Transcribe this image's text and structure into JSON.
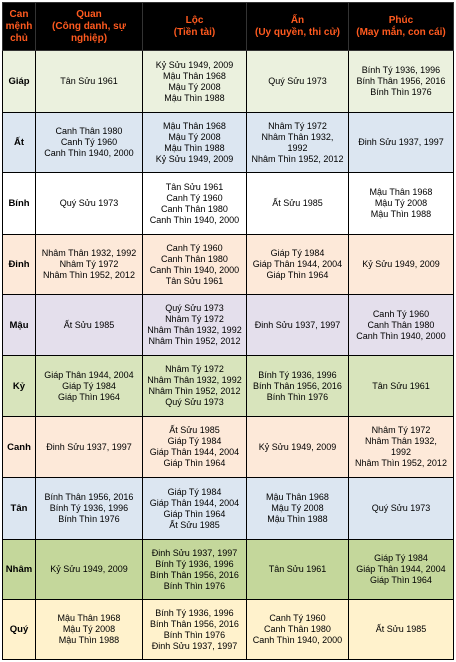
{
  "header": {
    "can_menh_chu": [
      "Can",
      "mệnh",
      "chủ"
    ],
    "quan": [
      "Quan",
      "(Công danh, sự",
      "nghiệp)"
    ],
    "loc": [
      "Lộc",
      "(Tiền tài)"
    ],
    "an": [
      "Ấn",
      "(Uy quyền, thi cử)"
    ],
    "phuc": [
      "Phúc",
      "(May mắn, con cái)"
    ]
  },
  "colors": {
    "header_bg": "#000000",
    "header_text": "#ff5a1f",
    "border": "#000000"
  },
  "rows": [
    {
      "can": "Giáp",
      "quan": [
        "Tân Sửu 1961"
      ],
      "loc": [
        "Kỷ Sửu 1949, 2009",
        "Mậu Thân 1968",
        "Mậu Tý 2008",
        "Mậu Thìn 1988"
      ],
      "an": [
        "Quý Sửu 1973"
      ],
      "phuc": [
        "Bính Tý 1936, 1996",
        "Bính Thân 1956, 2016",
        "Bính Thìn 1976"
      ]
    },
    {
      "can": "Ất",
      "quan": [
        "Canh Thân 1980",
        "Canh Tý 1960",
        "Canh Thìn 1940, 2000"
      ],
      "loc": [
        "Mậu Thân 1968",
        "Mậu Tý 2008",
        "Mậu Thìn 1988",
        "Kỷ Sửu 1949, 2009"
      ],
      "an": [
        "Nhâm Tý 1972",
        "Nhâm Thân 1932,",
        "1992",
        "Nhâm Thìn 1952, 2012"
      ],
      "phuc": [
        "Đinh Sửu 1937, 1997"
      ]
    },
    {
      "can": "Bính",
      "quan": [
        "Quý Sửu 1973"
      ],
      "loc": [
        "Tân Sửu 1961",
        "Canh Tý 1960",
        "Canh Thân 1980",
        "Canh Thìn 1940, 2000"
      ],
      "an": [
        "Ất Sửu 1985"
      ],
      "phuc": [
        "Mậu Thân 1968",
        "Mậu Tý 2008",
        "Mậu Thìn 1988"
      ]
    },
    {
      "can": "Đinh",
      "quan": [
        "Nhâm Thân 1932, 1992",
        "Nhâm Tý 1972",
        "Nhâm Thìn 1952, 2012"
      ],
      "loc": [
        "Canh Tý 1960",
        "Canh Thân 1980",
        "Canh Thìn 1940, 2000",
        "Tân Sửu 1961"
      ],
      "an": [
        "Giáp Tý 1984",
        "Giáp Thân 1944, 2004",
        "Giáp Thìn 1964"
      ],
      "phuc": [
        "Kỷ Sửu 1949, 2009"
      ]
    },
    {
      "can": "Mậu",
      "quan": [
        "Ất Sửu 1985"
      ],
      "loc": [
        "Quý Sửu 1973",
        "Nhâm Tý 1972",
        "Nhâm Thân 1932, 1992",
        "Nhâm Thìn 1952, 2012"
      ],
      "an": [
        "Đinh Sửu 1937, 1997"
      ],
      "phuc": [
        "Canh Tý 1960",
        "Canh Thân 1980",
        "Canh Thìn 1940, 2000"
      ]
    },
    {
      "can": "Kỷ",
      "quan": [
        "Giáp Thân 1944, 2004",
        "Giáp Tý 1984",
        "Giáp Thìn 1964"
      ],
      "loc": [
        "Nhâm Tý 1972",
        "Nhâm Thân 1932, 1992",
        "Nhâm Thìn 1952, 2012",
        "Quý Sửu 1973"
      ],
      "an": [
        "Bính Tý 1936, 1996",
        "Bính Thân 1956, 2016",
        "Bính Thìn 1976"
      ],
      "phuc": [
        "Tân Sửu  1961"
      ]
    },
    {
      "can": "Canh",
      "quan": [
        "Đinh Sửu 1937, 1997"
      ],
      "loc": [
        "Ất Sửu 1985",
        "Giáp Tý 1984",
        "Giáp Thân 1944, 2004",
        "Giáp Thìn 1964"
      ],
      "an": [
        "Kỷ Sửu 1949, 2009"
      ],
      "phuc": [
        "Nhâm Tý 1972",
        "Nhâm Thân 1932,",
        "1992",
        "Nhâm Thìn 1952, 2012"
      ]
    },
    {
      "can": "Tân",
      "quan": [
        "Bính Thân 1956, 2016",
        "Bính Tý 1936, 1996",
        "Bính Thìn 1976"
      ],
      "loc": [
        "Giáp Tý 1984",
        "Giáp Thân 1944, 2004",
        "Giáp Thìn 1964",
        "Ất Sửu 1985"
      ],
      "an": [
        "Mậu Thân 1968",
        "Mậu Tý 2008",
        "Mậu Thìn 1988"
      ],
      "phuc": [
        "Quý Sửu 1973"
      ]
    },
    {
      "can": "Nhâm",
      "quan": [
        "Kỷ Sửu 1949, 2009"
      ],
      "loc": [
        "Đinh Sửu 1937, 1997",
        "Bính Tý 1936, 1996",
        "Bính Thân 1956, 2016",
        "Bính Thìn 1976"
      ],
      "an": [
        "Tân Sửu  1961"
      ],
      "phuc": [
        "Giáp Tý 1984",
        "Giáp Thân 1944, 2004",
        "Giáp Thìn 1964"
      ]
    },
    {
      "can": "Quý",
      "quan": [
        "Mậu Thân 1968",
        "Mậu Tý 2008",
        "Mậu Thìn 1988"
      ],
      "loc": [
        "Bính Tý 1936, 1996",
        "Bính Thân 1956, 2016",
        "Bính Thìn 1976",
        "Đinh Sửu 1937, 1997"
      ],
      "an": [
        "Canh Tý 1960",
        "Canh Thân 1980",
        "Canh Thìn 1940, 2000"
      ],
      "phuc": [
        "Ất Sửu 1985"
      ]
    }
  ]
}
